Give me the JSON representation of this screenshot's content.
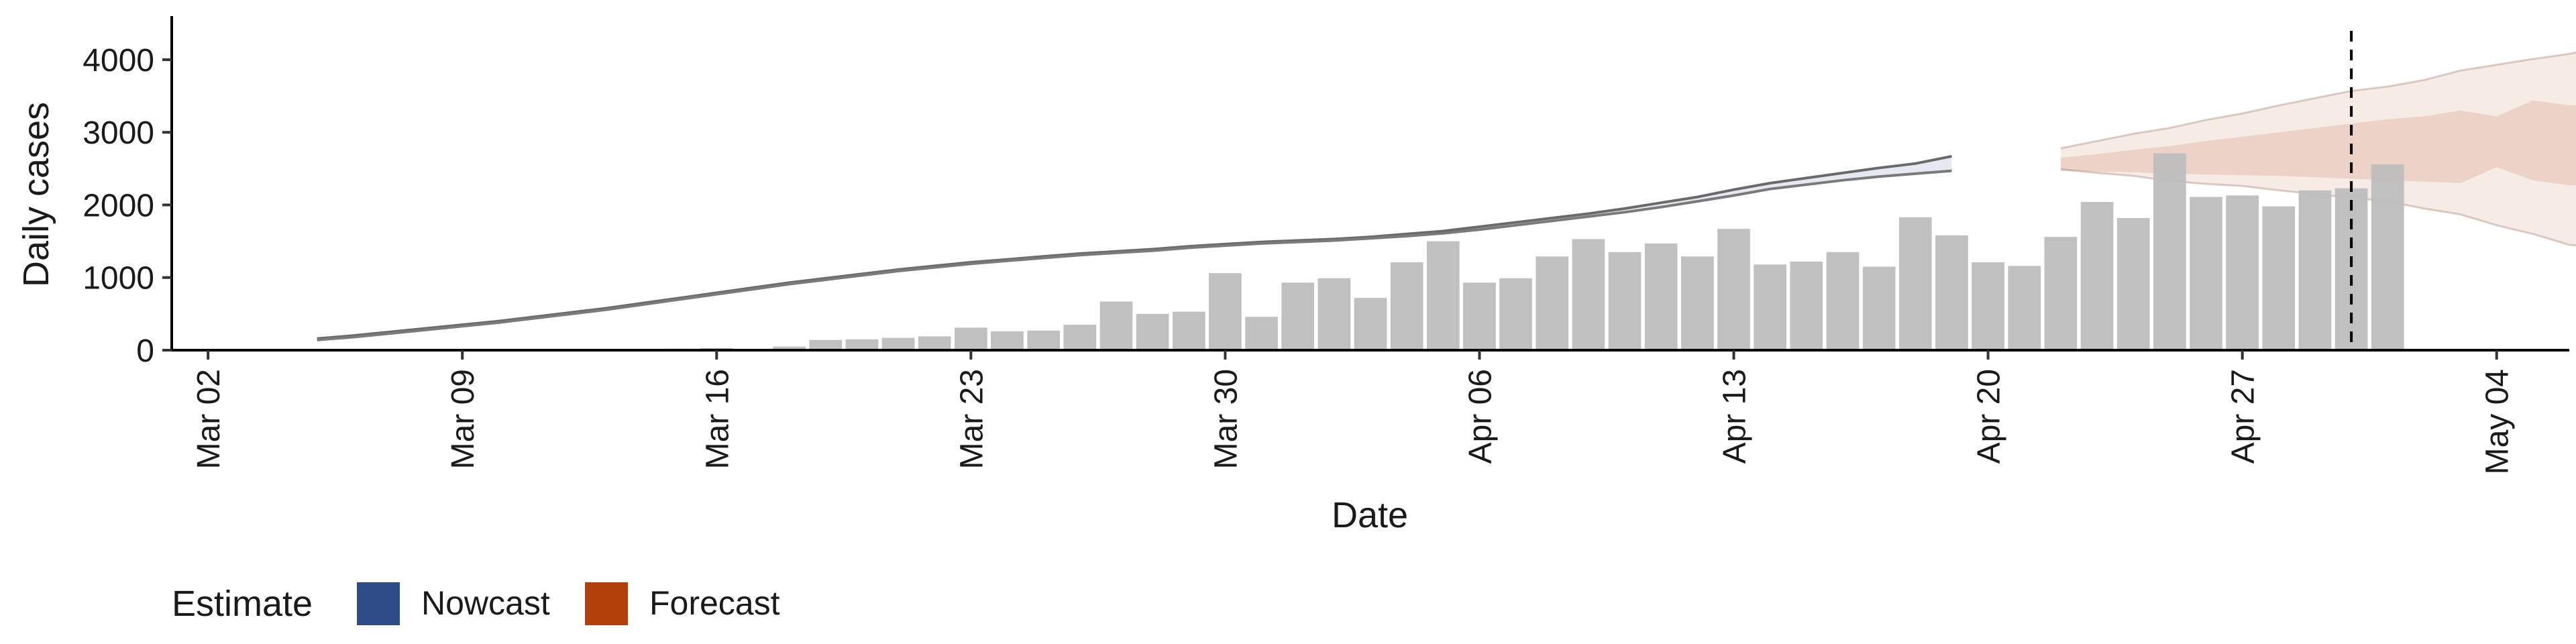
{
  "chart_data": {
    "type": "bar",
    "xlabel": "Date",
    "ylabel": "Daily cases",
    "ylim": [
      0,
      4600
    ],
    "y_ticks": [
      0,
      1000,
      2000,
      3000,
      4000
    ],
    "x_range": [
      "2020-03-01",
      "2020-05-06"
    ],
    "x_ticks": [
      {
        "date": "2020-03-02",
        "label": "Mar 02"
      },
      {
        "date": "2020-03-09",
        "label": "Mar 09"
      },
      {
        "date": "2020-03-16",
        "label": "Mar 16"
      },
      {
        "date": "2020-03-23",
        "label": "Mar 23"
      },
      {
        "date": "2020-03-30",
        "label": "Mar 30"
      },
      {
        "date": "2020-04-06",
        "label": "Apr 06"
      },
      {
        "date": "2020-04-13",
        "label": "Apr 13"
      },
      {
        "date": "2020-04-20",
        "label": "Apr 20"
      },
      {
        "date": "2020-04-27",
        "label": "Apr 27"
      },
      {
        "date": "2020-05-04",
        "label": "May 04"
      }
    ],
    "grid": false,
    "bars": {
      "start_date": "2020-03-09",
      "values": [
        5,
        0,
        0,
        0,
        2,
        10,
        20,
        30,
        10,
        50,
        140,
        150,
        170,
        190,
        310,
        260,
        270,
        350,
        670,
        500,
        530,
        1060,
        460,
        930,
        990,
        720,
        1210,
        1500,
        930,
        990,
        1290,
        1530,
        1350,
        1470,
        1290,
        1670,
        1180,
        1220,
        1350,
        1150,
        1830,
        1580,
        1210,
        1160,
        1560,
        2040,
        1820,
        2710,
        2110,
        2130,
        1980,
        2200,
        2230,
        2560
      ],
      "color": "#bebebe"
    },
    "series": [
      {
        "name": "Nowcast",
        "color": "#2f4b88",
        "start_date": "2020-03-05",
        "upper": [
          160,
          200,
          250,
          300,
          350,
          400,
          460,
          520,
          580,
          650,
          720,
          790,
          860,
          930,
          990,
          1050,
          1110,
          1160,
          1210,
          1250,
          1290,
          1330,
          1360,
          1390,
          1430,
          1460,
          1490,
          1510,
          1530,
          1560,
          1600,
          1640,
          1700,
          1760,
          1820,
          1880,
          1950,
          2030,
          2110,
          2210,
          2300,
          2370,
          2440,
          2510,
          2570,
          2670
        ],
        "lower": [
          140,
          180,
          230,
          280,
          330,
          380,
          440,
          500,
          560,
          630,
          700,
          770,
          840,
          910,
          970,
          1030,
          1090,
          1140,
          1190,
          1230,
          1270,
          1310,
          1340,
          1370,
          1410,
          1440,
          1470,
          1490,
          1510,
          1540,
          1570,
          1610,
          1660,
          1720,
          1780,
          1840,
          1900,
          1970,
          2050,
          2130,
          2220,
          2280,
          2340,
          2390,
          2430,
          2470
        ]
      },
      {
        "name": "Forecast",
        "color": "#b33f0b",
        "start_date": "2020-04-22",
        "outer_upper": [
          2780,
          2880,
          2980,
          3060,
          3170,
          3260,
          3370,
          3470,
          3570,
          3630,
          3720,
          3850,
          3930,
          4010,
          4080,
          4180,
          4330,
          4400
        ],
        "outer_lower": [
          2490,
          2440,
          2400,
          2330,
          2290,
          2260,
          2200,
          2150,
          2100,
          2050,
          1950,
          1870,
          1720,
          1600,
          1450,
          1400,
          1350,
          1170
        ],
        "inner_upper": [
          2650,
          2700,
          2760,
          2810,
          2880,
          2940,
          3000,
          3060,
          3120,
          3180,
          3220,
          3300,
          3220,
          3440,
          3370,
          3400,
          3440,
          3530
        ],
        "inner_lower": [
          2470,
          2460,
          2450,
          2430,
          2420,
          2410,
          2400,
          2380,
          2360,
          2340,
          2320,
          2300,
          2520,
          2340,
          2270,
          2270,
          2280,
          2290
        ]
      }
    ],
    "vline_date": "2020-04-30",
    "legend": {
      "title": "Estimate",
      "position": "bottom-left",
      "entries": [
        {
          "label": "Nowcast",
          "color": "#2f4b88"
        },
        {
          "label": "Forecast",
          "color": "#b33f0b"
        }
      ]
    }
  }
}
